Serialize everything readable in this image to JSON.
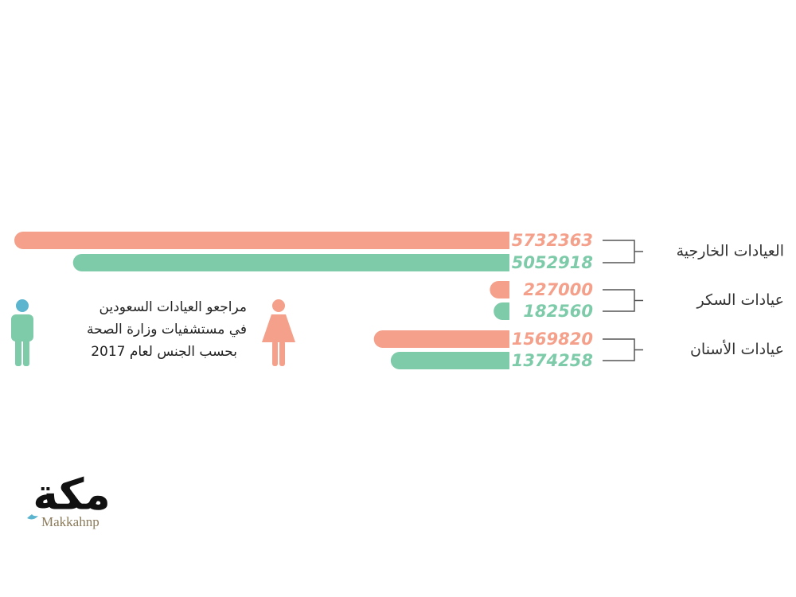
{
  "chart_data": {
    "type": "bar",
    "title": [
      "مراجعو العيادات السعودين",
      "في مستشفيات وزارة الصحة",
      "بحسب الجنس لعام 2017"
    ],
    "categories": [
      "العيادات الخارجية",
      "عيادات السكر",
      "عيادات الأسنان"
    ],
    "series": [
      {
        "color": "#f4a08a",
        "values": [
          5732363,
          227000,
          1569820
        ]
      },
      {
        "color": "#7ecbaa",
        "values": [
          5052918,
          182560,
          1374258
        ]
      }
    ],
    "logo": "مكة",
    "handle": "Makkahnp"
  }
}
